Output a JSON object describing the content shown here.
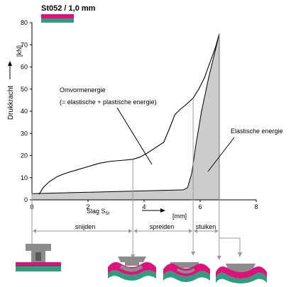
{
  "chart_data": {
    "type": "area",
    "title": "St052 / 1,0 mm",
    "xlabel": "Slag S",
    "xlabel_sub": "St",
    "ylabel": "Drukkracht",
    "yunit": "[kN]",
    "xunit": "[mm]",
    "xlim": [
      0,
      8
    ],
    "ylim": [
      0,
      80
    ],
    "xticks": [
      "0",
      "2",
      "4",
      "6",
      "8"
    ],
    "yticks": [
      "0",
      "10",
      "20",
      "30",
      "40",
      "50",
      "60",
      "70",
      "80"
    ],
    "grid": false,
    "series": [
      {
        "name": "Omvormenergie",
        "label_lines": [
          "Omvormenergie",
          "(= elastische + plastische energie)"
        ],
        "x": [
          0.25,
          0.4,
          0.6,
          0.9,
          1.2,
          1.6,
          2.0,
          2.4,
          2.8,
          3.2,
          3.6,
          3.85,
          4.1,
          4.4,
          4.7,
          4.9,
          5.1,
          5.3,
          5.5,
          5.75,
          5.95,
          6.15,
          6.35,
          6.55,
          6.68
        ],
        "y": [
          2.5,
          5.5,
          8.0,
          10.5,
          12.0,
          13.5,
          15.0,
          16.5,
          17.4,
          17.8,
          18.3,
          19.3,
          21.0,
          23.5,
          26.0,
          32.0,
          38.5,
          41.0,
          43.0,
          46.0,
          50.0,
          55.0,
          62.0,
          69.0,
          75.0
        ]
      },
      {
        "name": "Elastische energie",
        "label_lines": [
          "Elastische energie"
        ],
        "x": [
          0,
          5.4,
          5.55,
          5.7,
          5.85,
          6.05,
          6.3,
          6.55,
          6.68,
          6.68
        ],
        "y": [
          2.8,
          4.5,
          5.5,
          12.0,
          25.0,
          40.0,
          55.0,
          68.0,
          75.0,
          0
        ]
      }
    ],
    "annotations": {
      "phases": [
        "snijden",
        "spreiden",
        "stuiken"
      ],
      "phase_boundaries_x": [
        0,
        3.6,
        5.75,
        6.68
      ]
    },
    "colors": {
      "magenta": "#e0117a",
      "teal": "#2f9d7e",
      "shading": "#cccccc",
      "tool": "#8c8c8c",
      "line": "#000000",
      "guide": "#9a9a9a"
    }
  }
}
